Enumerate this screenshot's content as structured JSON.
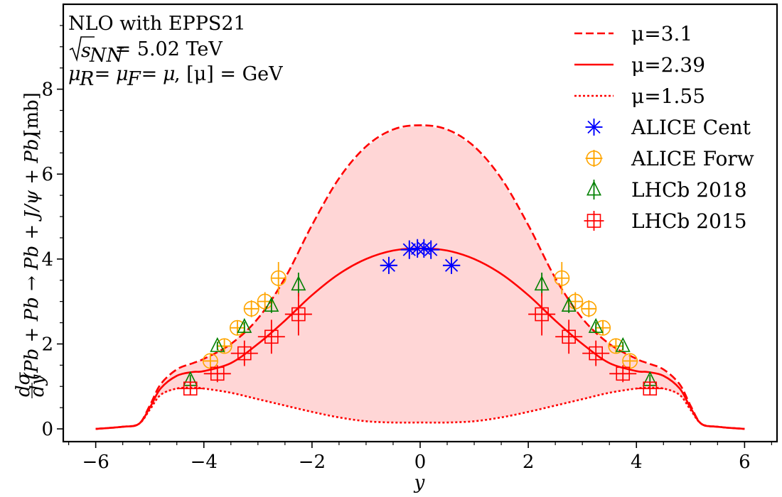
{
  "chart_data": {
    "type": "line",
    "annotations": [
      "NLO with EPPS21",
      "√s_NN = 5.02 TeV",
      "μ_R = μ_F = μ, [μ] = GeV"
    ],
    "annotation_parts": {
      "line1": "NLO with EPPS21",
      "line2_sqrt": "√",
      "line2_s": "s",
      "line2_sub": "NN",
      "line2_rest": " = 5.02 TeV",
      "line3_mu": "μ",
      "line3_r": "R",
      "line3_f": "F",
      "line3_eq": " = ",
      "line3_rest": ", [μ] = GeV"
    },
    "xlabel": "y",
    "ylabel": "dσ/dy (Pb + Pb → Pb + J/ψ + Pb) [mb]",
    "ylabel_parts": {
      "fraction_num": "dσ",
      "fraction_den": "dy",
      "process": "(Pb + Pb → Pb + J/ψ + Pb)",
      "unit": " [mb]"
    },
    "xlim": [
      -6.6,
      6.6
    ],
    "ylim": [
      -0.3,
      10.0
    ],
    "xticks": [
      -6,
      -4,
      -2,
      0,
      2,
      4,
      6
    ],
    "xtick_labels": [
      "−6",
      "−4",
      "−2",
      "0",
      "2",
      "4",
      "6"
    ],
    "yticks": [
      0,
      2,
      4,
      6,
      8
    ],
    "ytick_labels": [
      "0",
      "2",
      "4",
      "6",
      "8"
    ],
    "legend_position": "top-right",
    "colors": {
      "theory": "#ff0000",
      "band": "#ffd6d6",
      "alice_cent": "#0000ff",
      "alice_forw": "#ffa500",
      "lhcb_2018": "#008000",
      "lhcb_2015": "#ff0000"
    },
    "x": [
      -6.0,
      -5.5,
      -5.2,
      -5.0,
      -4.8,
      -4.5,
      -4.2,
      -4.0,
      -3.5,
      -3.0,
      -2.5,
      -2.0,
      -1.5,
      -1.0,
      -0.5,
      0.0,
      0.5,
      1.0,
      1.5,
      2.0,
      2.5,
      3.0,
      3.5,
      4.0,
      4.2,
      4.5,
      4.8,
      5.0,
      5.2,
      5.5,
      6.0
    ],
    "series": [
      {
        "name": "μ=3.1",
        "style": "dashed",
        "values": [
          0.0,
          0.05,
          0.12,
          0.55,
          1.05,
          1.4,
          1.55,
          1.65,
          2.0,
          2.6,
          3.55,
          4.8,
          5.9,
          6.65,
          7.05,
          7.15,
          7.05,
          6.65,
          5.9,
          4.8,
          3.55,
          2.6,
          2.0,
          1.65,
          1.55,
          1.4,
          1.05,
          0.55,
          0.12,
          0.05,
          0.0
        ]
      },
      {
        "name": "μ=2.39",
        "style": "solid",
        "values": [
          0.0,
          0.05,
          0.12,
          0.5,
          0.95,
          1.25,
          1.34,
          1.36,
          1.55,
          2.0,
          2.55,
          3.15,
          3.65,
          4.0,
          4.2,
          4.25,
          4.2,
          4.0,
          3.65,
          3.15,
          2.55,
          2.0,
          1.55,
          1.36,
          1.34,
          1.25,
          0.95,
          0.5,
          0.12,
          0.05,
          0.0
        ]
      },
      {
        "name": "μ=1.55",
        "style": "dotted",
        "values": [
          0.0,
          0.05,
          0.12,
          0.45,
          0.8,
          0.95,
          0.97,
          0.95,
          0.85,
          0.7,
          0.55,
          0.4,
          0.27,
          0.18,
          0.15,
          0.15,
          0.15,
          0.18,
          0.27,
          0.4,
          0.55,
          0.7,
          0.85,
          0.95,
          0.97,
          0.95,
          0.8,
          0.45,
          0.12,
          0.05,
          0.0
        ]
      }
    ],
    "data_series": [
      {
        "name": "ALICE Cent",
        "marker": "asterisk",
        "points": [
          {
            "x": -0.58,
            "y": 3.85,
            "xerr": 0.16,
            "yerr": 0.2
          },
          {
            "x": -0.2,
            "y": 4.22,
            "xerr": 0.16,
            "yerr": 0.22
          },
          {
            "x": -0.05,
            "y": 4.25,
            "xerr": 0.16,
            "yerr": 0.22
          },
          {
            "x": 0.07,
            "y": 4.25,
            "xerr": 0.16,
            "yerr": 0.22
          },
          {
            "x": 0.2,
            "y": 4.22,
            "xerr": 0.16,
            "yerr": 0.22
          },
          {
            "x": 0.58,
            "y": 3.85,
            "xerr": 0.16,
            "yerr": 0.2
          }
        ]
      },
      {
        "name": "ALICE Forw",
        "marker": "circle-plus",
        "points": [
          {
            "x": -3.88,
            "y": 1.6,
            "xerr": 0.12,
            "yerr": 0.14
          },
          {
            "x": -3.62,
            "y": 1.95,
            "xerr": 0.12,
            "yerr": 0.16
          },
          {
            "x": -3.38,
            "y": 2.38,
            "xerr": 0.12,
            "yerr": 0.18
          },
          {
            "x": -3.12,
            "y": 2.83,
            "xerr": 0.12,
            "yerr": 0.2
          },
          {
            "x": -2.87,
            "y": 3.0,
            "xerr": 0.12,
            "yerr": 0.22
          },
          {
            "x": -2.62,
            "y": 3.55,
            "xerr": 0.12,
            "yerr": 0.38
          },
          {
            "x": 2.62,
            "y": 3.55,
            "xerr": 0.12,
            "yerr": 0.38
          },
          {
            "x": 2.87,
            "y": 3.0,
            "xerr": 0.12,
            "yerr": 0.22
          },
          {
            "x": 3.12,
            "y": 2.83,
            "xerr": 0.12,
            "yerr": 0.2
          },
          {
            "x": 3.38,
            "y": 2.38,
            "xerr": 0.12,
            "yerr": 0.18
          },
          {
            "x": 3.62,
            "y": 1.95,
            "xerr": 0.12,
            "yerr": 0.16
          },
          {
            "x": 3.88,
            "y": 1.6,
            "xerr": 0.12,
            "yerr": 0.14
          }
        ]
      },
      {
        "name": "LHCb 2018",
        "marker": "triangle",
        "points": [
          {
            "x": -4.25,
            "y": 1.15,
            "xerr": 0.0,
            "yerr": 0.12
          },
          {
            "x": -3.75,
            "y": 1.95,
            "xerr": 0.0,
            "yerr": 0.1
          },
          {
            "x": -3.25,
            "y": 2.4,
            "xerr": 0.0,
            "yerr": 0.12
          },
          {
            "x": -2.75,
            "y": 2.9,
            "xerr": 0.0,
            "yerr": 0.17
          },
          {
            "x": -2.25,
            "y": 3.4,
            "xerr": 0.0,
            "yerr": 0.28
          },
          {
            "x": 2.25,
            "y": 3.4,
            "xerr": 0.0,
            "yerr": 0.28
          },
          {
            "x": 2.75,
            "y": 2.9,
            "xerr": 0.0,
            "yerr": 0.17
          },
          {
            "x": 3.25,
            "y": 2.4,
            "xerr": 0.0,
            "yerr": 0.12
          },
          {
            "x": 3.75,
            "y": 1.95,
            "xerr": 0.0,
            "yerr": 0.1
          },
          {
            "x": 4.25,
            "y": 1.15,
            "xerr": 0.0,
            "yerr": 0.12
          }
        ]
      },
      {
        "name": "LHCb 2015",
        "marker": "square-plus",
        "points": [
          {
            "x": -4.25,
            "y": 0.95,
            "xerr": 0.25,
            "yerr": 0.15
          },
          {
            "x": -3.75,
            "y": 1.3,
            "xerr": 0.25,
            "yerr": 0.2
          },
          {
            "x": -3.25,
            "y": 1.78,
            "xerr": 0.25,
            "yerr": 0.3
          },
          {
            "x": -2.75,
            "y": 2.17,
            "xerr": 0.25,
            "yerr": 0.4
          },
          {
            "x": -2.25,
            "y": 2.7,
            "xerr": 0.25,
            "yerr": 0.5
          },
          {
            "x": 2.25,
            "y": 2.7,
            "xerr": 0.25,
            "yerr": 0.5
          },
          {
            "x": 2.75,
            "y": 2.17,
            "xerr": 0.25,
            "yerr": 0.4
          },
          {
            "x": 3.25,
            "y": 1.78,
            "xerr": 0.25,
            "yerr": 0.3
          },
          {
            "x": 3.75,
            "y": 1.3,
            "xerr": 0.25,
            "yerr": 0.2
          },
          {
            "x": 4.25,
            "y": 0.95,
            "xerr": 0.25,
            "yerr": 0.15
          }
        ]
      }
    ]
  }
}
